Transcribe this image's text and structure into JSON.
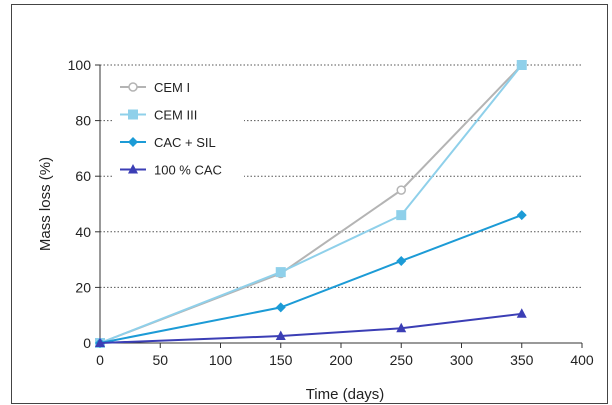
{
  "chart_data": {
    "type": "line",
    "xlabel": "Time (days)",
    "ylabel": "Mass loss (%)",
    "xlim": [
      0,
      400
    ],
    "ylim": [
      0,
      100
    ],
    "xticks": [
      0,
      50,
      100,
      150,
      200,
      250,
      300,
      350,
      400
    ],
    "yticks": [
      0,
      20,
      40,
      60,
      80,
      100
    ],
    "grid": "horizontal-dotted",
    "legend_position": "top-left",
    "series": [
      {
        "name": "CEM I",
        "color": "#b4b4b4",
        "marker": "circle-open",
        "x": [
          0,
          150,
          250,
          350
        ],
        "y": [
          0,
          25,
          55,
          100
        ]
      },
      {
        "name": "CEM III",
        "color": "#8fd0ea",
        "marker": "square",
        "x": [
          0,
          150,
          250,
          350
        ],
        "y": [
          0,
          25.5,
          46,
          100
        ]
      },
      {
        "name": "CAC + SIL",
        "color": "#1c9bd6",
        "marker": "diamond",
        "x": [
          0,
          150,
          250,
          350
        ],
        "y": [
          0,
          12.8,
          29.5,
          46
        ]
      },
      {
        "name": "100 % CAC",
        "color": "#3b3eb5",
        "marker": "triangle",
        "x": [
          0,
          150,
          250,
          350
        ],
        "y": [
          0,
          2.5,
          5.3,
          10.5
        ]
      }
    ]
  }
}
